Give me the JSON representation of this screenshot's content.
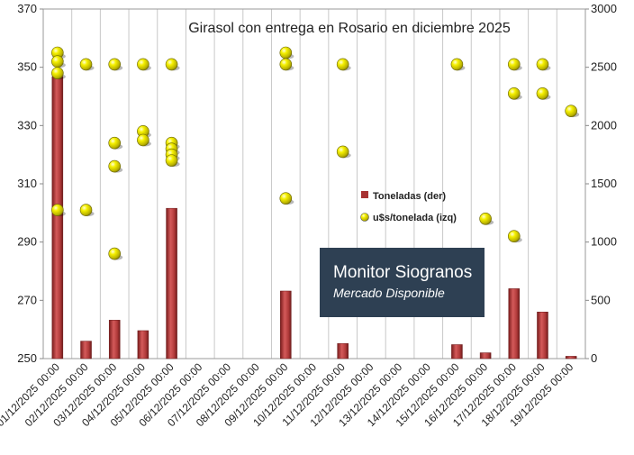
{
  "chart_data": {
    "type": "bar",
    "title": "Girasol con entrega en Rosario en diciembre 2025",
    "categories": [
      "01/12/2025 00:00",
      "02/12/2025 00:00",
      "03/12/2025 00:00",
      "04/12/2025 00:00",
      "05/12/2025 00:00",
      "06/12/2025 00:00",
      "07/12/2025 00:00",
      "08/12/2025 00:00",
      "09/12/2025 00:00",
      "10/12/2025 00:00",
      "11/12/2025 00:00",
      "12/12/2025 00:00",
      "13/12/2025 00:00",
      "14/12/2025 00:00",
      "15/12/2025 00:00",
      "16/12/2025 00:00",
      "17/12/2025 00:00",
      "18/12/2025 00:00",
      "19/12/2025 00:00"
    ],
    "y_left": {
      "ticks": [
        "250",
        "270",
        "290",
        "310",
        "330",
        "350",
        "370"
      ],
      "ylim": [
        250,
        370
      ]
    },
    "y_right": {
      "ticks": [
        "0",
        "500",
        "1000",
        "1500",
        "2000",
        "2500",
        "3000"
      ],
      "ylim": [
        0,
        3000
      ]
    },
    "grid": "vertical",
    "legend_position": "center-right",
    "series": [
      {
        "name": "Toneladas (der)",
        "kind": "bar",
        "axis": "right",
        "color": "#a83232",
        "values": [
          2420,
          150,
          330,
          240,
          1290,
          0,
          0,
          0,
          580,
          0,
          130,
          0,
          0,
          0,
          120,
          50,
          600,
          400,
          20
        ]
      },
      {
        "name": "u$s/tonelada (izq)",
        "kind": "points",
        "axis": "left",
        "color": "#f2ee00",
        "points": [
          {
            "x": 0,
            "y": 355
          },
          {
            "x": 0,
            "y": 352
          },
          {
            "x": 0,
            "y": 348
          },
          {
            "x": 0,
            "y": 301
          },
          {
            "x": 1,
            "y": 351
          },
          {
            "x": 1,
            "y": 301
          },
          {
            "x": 2,
            "y": 351
          },
          {
            "x": 2,
            "y": 324
          },
          {
            "x": 2,
            "y": 316
          },
          {
            "x": 2,
            "y": 286
          },
          {
            "x": 3,
            "y": 351
          },
          {
            "x": 3,
            "y": 328
          },
          {
            "x": 3,
            "y": 325
          },
          {
            "x": 4,
            "y": 351
          },
          {
            "x": 4,
            "y": 324
          },
          {
            "x": 4,
            "y": 322
          },
          {
            "x": 4,
            "y": 320
          },
          {
            "x": 4,
            "y": 318
          },
          {
            "x": 8,
            "y": 355
          },
          {
            "x": 8,
            "y": 351
          },
          {
            "x": 8,
            "y": 305
          },
          {
            "x": 10,
            "y": 351
          },
          {
            "x": 10,
            "y": 321
          },
          {
            "x": 14,
            "y": 351
          },
          {
            "x": 15,
            "y": 298
          },
          {
            "x": 16,
            "y": 351
          },
          {
            "x": 16,
            "y": 341
          },
          {
            "x": 16,
            "y": 292
          },
          {
            "x": 17,
            "y": 351
          },
          {
            "x": 17,
            "y": 341
          },
          {
            "x": 18,
            "y": 335
          }
        ]
      }
    ]
  },
  "watermark": {
    "title": "Monitor Siogranos",
    "subtitle": "Mercado Disponible"
  }
}
